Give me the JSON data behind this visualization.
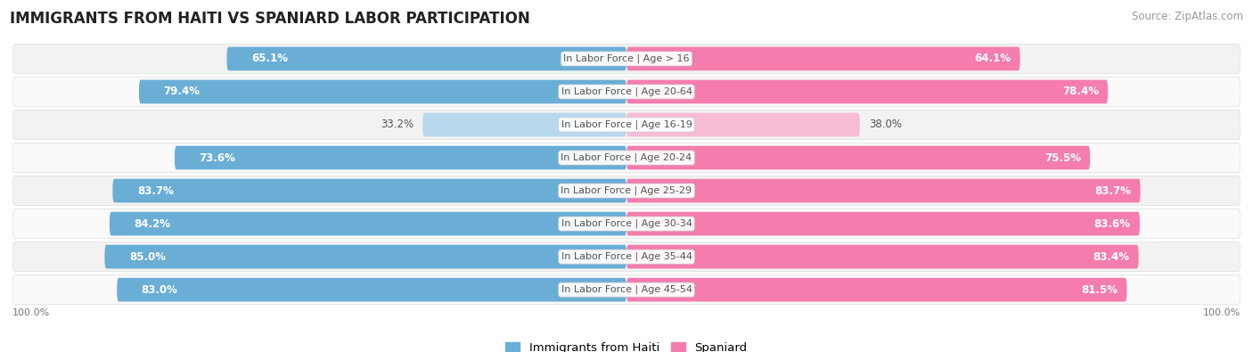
{
  "title": "IMMIGRANTS FROM HAITI VS SPANIARD LABOR PARTICIPATION",
  "source": "Source: ZipAtlas.com",
  "categories": [
    "In Labor Force | Age > 16",
    "In Labor Force | Age 20-64",
    "In Labor Force | Age 16-19",
    "In Labor Force | Age 20-24",
    "In Labor Force | Age 25-29",
    "In Labor Force | Age 30-34",
    "In Labor Force | Age 35-44",
    "In Labor Force | Age 45-54"
  ],
  "haiti_values": [
    65.1,
    79.4,
    33.2,
    73.6,
    83.7,
    84.2,
    85.0,
    83.0
  ],
  "spaniard_values": [
    64.1,
    78.4,
    38.0,
    75.5,
    83.7,
    83.6,
    83.4,
    81.5
  ],
  "haiti_color": "#6AAED6",
  "spaniard_color": "#F47DAE",
  "haiti_color_light": "#B8D8EE",
  "spaniard_color_light": "#F9BCD5",
  "row_bg_color": "#F2F2F2",
  "row_bg_color2": "#FAFAFA",
  "max_value": 100.0,
  "label_fontsize": 8.5,
  "title_fontsize": 12,
  "legend_fontsize": 9.5,
  "source_fontsize": 8.5,
  "text_color_dark": "#555555",
  "text_color_white": "#FFFFFF",
  "bottom_label_color": "#777777",
  "small_threshold": 50
}
